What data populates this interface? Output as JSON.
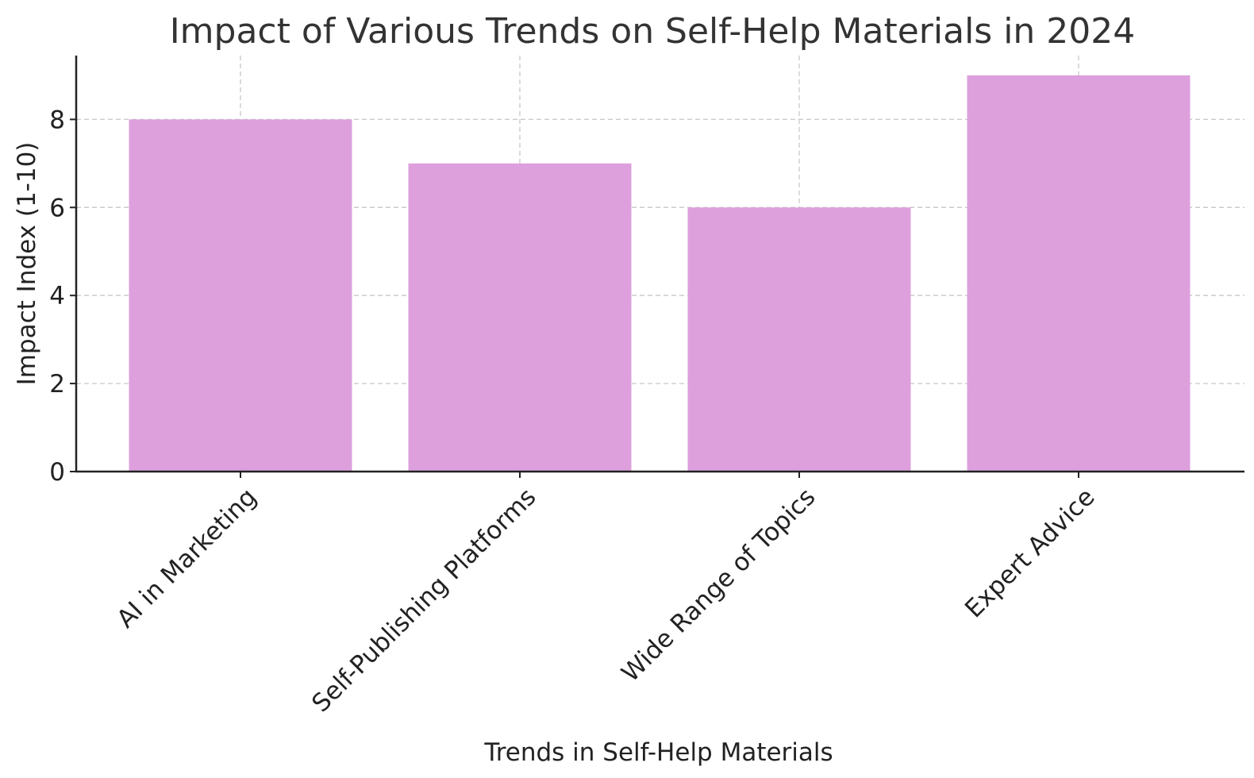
{
  "chart_data": {
    "type": "bar",
    "title": "Impact of Various Trends on Self-Help Materials in 2024",
    "xlabel": "Trends in Self-Help Materials",
    "ylabel": "Impact Index (1-10)",
    "categories": [
      "AI in Marketing",
      "Self-Publishing Platforms",
      "Wide Range of Topics",
      "Expert Advice"
    ],
    "values": [
      8,
      7,
      6,
      9
    ],
    "ylim": [
      0,
      9.45
    ],
    "yticks": [
      0,
      2,
      4,
      6,
      8
    ],
    "bar_color": "#dda0dd",
    "grid": true,
    "grid_style": "dashed",
    "x_tick_rotation": 45
  }
}
